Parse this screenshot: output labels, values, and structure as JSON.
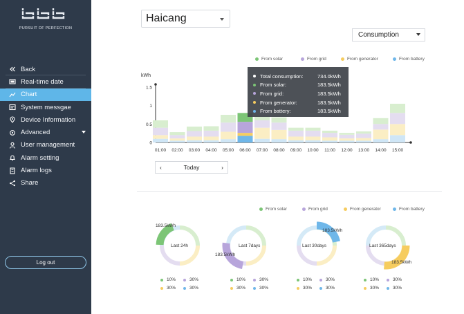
{
  "sidebar": {
    "brand": "PURSUIT OF PERFECTION",
    "items": [
      {
        "label": "Back",
        "icon": "chevrons-left-icon"
      },
      {
        "label": "Real-time date",
        "icon": "monitor-icon"
      },
      {
        "label": "Chart",
        "icon": "line-chart-icon"
      },
      {
        "label": "System messgae",
        "icon": "message-icon"
      },
      {
        "label": "Device Information",
        "icon": "location-icon"
      },
      {
        "label": "Advanced",
        "icon": "settings-icon"
      },
      {
        "label": "User management",
        "icon": "user-icon"
      },
      {
        "label": "Alarm setting",
        "icon": "bell-icon"
      },
      {
        "label": "Alarm logs",
        "icon": "log-icon"
      },
      {
        "label": "Share",
        "icon": "share-icon"
      }
    ],
    "logout": "Log out"
  },
  "station": "Haicang",
  "mode": "Consumption",
  "legend": [
    "From solar",
    "From grid",
    "From generator",
    "From battery"
  ],
  "colors": {
    "solar": "#7cc576",
    "grid": "#b7a5db",
    "generator": "#f6cc5f",
    "battery": "#6fb7e9",
    "sidebar": "#2e3a4a",
    "active": "#5fb6e8"
  },
  "chart_data": {
    "type": "bar",
    "ylabel": "kWh",
    "yticks": [
      "1.5",
      "1",
      "0.5",
      "0"
    ],
    "ylim": [
      0,
      1.5
    ],
    "categories": [
      "01:00",
      "02:00",
      "03:00",
      "04:00",
      "05:00",
      "06:00",
      "07:00",
      "08:00",
      "09:00",
      "10:00",
      "11:00",
      "12:00",
      "13:00",
      "14:00",
      "15:00"
    ],
    "highlight_index": 5,
    "series": [
      {
        "name": "From battery",
        "values": [
          0.1,
          0.05,
          0.06,
          0.06,
          0.09,
          0.18,
          0.1,
          0.09,
          0.06,
          0.06,
          0.05,
          0.05,
          0.05,
          0.09,
          0.2
        ]
      },
      {
        "name": "From generator",
        "values": [
          0.1,
          0.06,
          0.1,
          0.1,
          0.2,
          0.08,
          0.3,
          0.25,
          0.1,
          0.1,
          0.09,
          0.06,
          0.07,
          0.26,
          0.3
        ]
      },
      {
        "name": "From grid",
        "values": [
          0.2,
          0.09,
          0.15,
          0.16,
          0.25,
          0.3,
          0.2,
          0.2,
          0.16,
          0.16,
          0.12,
          0.1,
          0.12,
          0.15,
          0.3
        ]
      },
      {
        "name": "From solar",
        "values": [
          0.2,
          0.08,
          0.12,
          0.12,
          0.21,
          0.24,
          0.15,
          0.14,
          0.08,
          0.08,
          0.06,
          0.05,
          0.06,
          0.16,
          0.25
        ]
      }
    ]
  },
  "tooltip": [
    {
      "label": "Total consumption:",
      "value": "734.0kWh",
      "color": "#ffffff"
    },
    {
      "label": "From solar:",
      "value": "183.5kWh",
      "color": "#7cc576"
    },
    {
      "label": "From grid:",
      "value": "183.5kWh",
      "color": "#b7a5db"
    },
    {
      "label": "From generator:",
      "value": "183.5kWh",
      "color": "#f6cc5f"
    },
    {
      "label": "From battery:",
      "value": "183.5kWh",
      "color": "#6fb7e9"
    }
  ],
  "pager": {
    "prev": "‹",
    "label": "Today",
    "next": "›"
  },
  "donuts": [
    {
      "label": "Last 24h",
      "value": "183.5kWh",
      "highlight": "solar",
      "legend": [
        "10%",
        "30%",
        "30%",
        "30%"
      ]
    },
    {
      "label": "Last 7days",
      "value": "183.5kWh",
      "highlight": "grid",
      "legend": [
        "10%",
        "30%",
        "30%",
        "30%"
      ]
    },
    {
      "label": "Last 30days",
      "value": "183.5kWh",
      "highlight": "battery",
      "legend": [
        "10%",
        "30%",
        "30%",
        "30%"
      ]
    },
    {
      "label": "Last 365days",
      "value": "183.5kWh",
      "highlight": "generator",
      "legend": [
        "10%",
        "30%",
        "30%",
        "30%"
      ]
    }
  ]
}
